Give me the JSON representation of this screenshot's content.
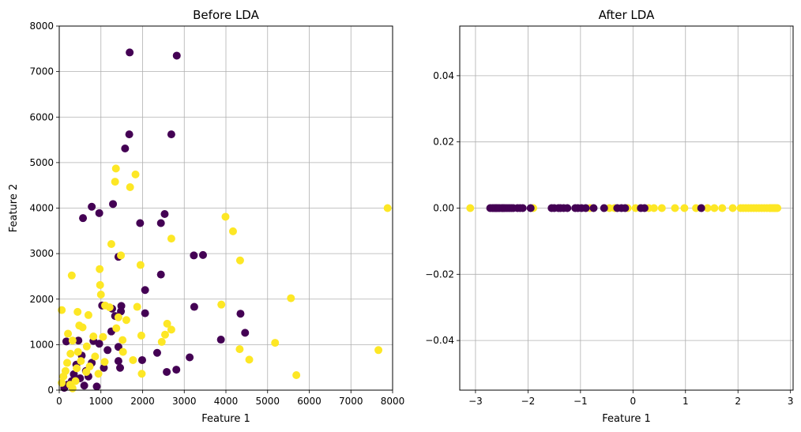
{
  "colors": {
    "class_0": "#440154",
    "class_1": "#fde725",
    "grid": "#b0b0b0"
  },
  "chart_data": [
    {
      "type": "scatter",
      "title": "Before LDA",
      "xlabel": "Feature 1",
      "ylabel": "Feature 2",
      "xlim": [
        0,
        8000
      ],
      "ylim": [
        0,
        8000
      ],
      "xticks": [
        0,
        1000,
        2000,
        3000,
        4000,
        5000,
        6000,
        7000,
        8000
      ],
      "yticks": [
        0,
        1000,
        2000,
        3000,
        4000,
        5000,
        6000,
        7000,
        8000
      ],
      "grid": true,
      "series": [
        {
          "color": "#440154",
          "points": [
            [
              1690,
              7420
            ],
            [
              2820,
              7350
            ],
            [
              1680,
              5620
            ],
            [
              2690,
              5620
            ],
            [
              1580,
              5310
            ],
            [
              780,
              4030
            ],
            [
              570,
              3780
            ],
            [
              960,
              3890
            ],
            [
              1290,
              4090
            ],
            [
              2530,
              3870
            ],
            [
              1940,
              3670
            ],
            [
              2440,
              3670
            ],
            [
              1420,
              2930
            ],
            [
              3230,
              2960
            ],
            [
              3450,
              2970
            ],
            [
              2440,
              2540
            ],
            [
              2060,
              2200
            ],
            [
              1030,
              1860
            ],
            [
              1270,
              1790
            ],
            [
              1490,
              1850
            ],
            [
              3240,
              1830
            ],
            [
              4350,
              1680
            ],
            [
              2060,
              1690
            ],
            [
              1340,
              1630
            ],
            [
              1480,
              1730
            ],
            [
              4460,
              1260
            ],
            [
              1250,
              1290
            ],
            [
              3880,
              1110
            ],
            [
              170,
              1070
            ],
            [
              460,
              1090
            ],
            [
              820,
              1080
            ],
            [
              960,
              1020
            ],
            [
              1420,
              950
            ],
            [
              2350,
              820
            ],
            [
              1420,
              640
            ],
            [
              1990,
              660
            ],
            [
              3130,
              720
            ],
            [
              1070,
              490
            ],
            [
              1460,
              490
            ],
            [
              2580,
              400
            ],
            [
              2810,
              450
            ],
            [
              640,
              420
            ],
            [
              700,
              300
            ],
            [
              500,
              260
            ],
            [
              300,
              200
            ],
            [
              200,
              120
            ],
            [
              600,
              100
            ],
            [
              900,
              80
            ],
            [
              120,
              50
            ],
            [
              350,
              350
            ],
            [
              780,
              600
            ],
            [
              1160,
              880
            ],
            [
              410,
              560
            ],
            [
              540,
              760
            ]
          ]
        },
        {
          "color": "#fde725",
          "points": [
            [
              1360,
              4870
            ],
            [
              1830,
              4740
            ],
            [
              1340,
              4580
            ],
            [
              1700,
              4460
            ],
            [
              3990,
              3810
            ],
            [
              4170,
              3490
            ],
            [
              7880,
              4000
            ],
            [
              2690,
              3330
            ],
            [
              1250,
              3210
            ],
            [
              1480,
              2960
            ],
            [
              1950,
              2750
            ],
            [
              4340,
              2850
            ],
            [
              970,
              2660
            ],
            [
              300,
              2520
            ],
            [
              980,
              2310
            ],
            [
              1000,
              2100
            ],
            [
              1100,
              1860
            ],
            [
              1210,
              1820
            ],
            [
              1870,
              1830
            ],
            [
              3890,
              1880
            ],
            [
              5560,
              2020
            ],
            [
              60,
              1760
            ],
            [
              440,
              1720
            ],
            [
              700,
              1650
            ],
            [
              1420,
              1600
            ],
            [
              1610,
              1540
            ],
            [
              480,
              1420
            ],
            [
              560,
              1380
            ],
            [
              1370,
              1360
            ],
            [
              2590,
              1460
            ],
            [
              2690,
              1330
            ],
            [
              2540,
              1220
            ],
            [
              1970,
              1200
            ],
            [
              1050,
              1170
            ],
            [
              820,
              1180
            ],
            [
              210,
              1240
            ],
            [
              320,
              1090
            ],
            [
              1520,
              1100
            ],
            [
              2460,
              1060
            ],
            [
              5180,
              1040
            ],
            [
              7660,
              880
            ],
            [
              4330,
              900
            ],
            [
              4560,
              670
            ],
            [
              660,
              960
            ],
            [
              450,
              840
            ],
            [
              270,
              800
            ],
            [
              1530,
              840
            ],
            [
              1770,
              660
            ],
            [
              1980,
              360
            ],
            [
              5690,
              330
            ],
            [
              190,
              600
            ],
            [
              420,
              480
            ],
            [
              650,
              400
            ],
            [
              100,
              300
            ],
            [
              260,
              120
            ],
            [
              390,
              200
            ],
            [
              860,
              740
            ],
            [
              1090,
              620
            ],
            [
              150,
              420
            ],
            [
              520,
              640
            ],
            [
              730,
              520
            ],
            [
              60,
              160
            ],
            [
              320,
              40
            ],
            [
              940,
              360
            ]
          ]
        }
      ]
    },
    {
      "type": "scatter",
      "title": "After LDA",
      "xlabel": "Feature 1",
      "ylabel": "",
      "xlim": [
        -3.3,
        3.05
      ],
      "ylim": [
        -0.055,
        0.055
      ],
      "xticks": [
        -3,
        -2,
        -1,
        0,
        1,
        2,
        3
      ],
      "yticks": [
        -0.04,
        -0.02,
        0.0,
        0.02,
        0.04
      ],
      "ytick_labels": [
        "−0.04",
        "−0.02",
        "0.00",
        "0.02",
        "0.04"
      ],
      "xtick_labels": [
        "−3",
        "−2",
        "−1",
        "0",
        "1",
        "2",
        "3"
      ],
      "grid": true,
      "series": [
        {
          "color": "#fde725",
          "points": [
            [
              -3.1,
              0
            ],
            [
              -1.9,
              0
            ],
            [
              -0.82,
              0
            ],
            [
              -0.45,
              0
            ],
            [
              -0.35,
              0
            ],
            [
              -0.1,
              0
            ],
            [
              0.05,
              0
            ],
            [
              0.3,
              0
            ],
            [
              0.4,
              0
            ],
            [
              0.55,
              0
            ],
            [
              0.8,
              0
            ],
            [
              0.98,
              0
            ],
            [
              1.2,
              0
            ],
            [
              1.42,
              0
            ],
            [
              1.55,
              0
            ],
            [
              1.7,
              0
            ],
            [
              1.9,
              0
            ],
            [
              2.05,
              0
            ],
            [
              2.1,
              0
            ],
            [
              2.15,
              0
            ],
            [
              2.2,
              0
            ],
            [
              2.25,
              0
            ],
            [
              2.3,
              0
            ],
            [
              2.35,
              0
            ],
            [
              2.4,
              0
            ],
            [
              2.45,
              0
            ],
            [
              2.5,
              0
            ],
            [
              2.55,
              0
            ],
            [
              2.6,
              0
            ],
            [
              2.62,
              0
            ],
            [
              2.65,
              0
            ],
            [
              2.68,
              0
            ],
            [
              2.7,
              0
            ],
            [
              2.72,
              0
            ],
            [
              2.75,
              0
            ]
          ]
        },
        {
          "color": "#440154",
          "points": [
            [
              -2.72,
              0
            ],
            [
              -2.68,
              0
            ],
            [
              -2.65,
              0
            ],
            [
              -2.62,
              0
            ],
            [
              -2.6,
              0
            ],
            [
              -2.57,
              0
            ],
            [
              -2.54,
              0
            ],
            [
              -2.5,
              0
            ],
            [
              -2.47,
              0
            ],
            [
              -2.44,
              0
            ],
            [
              -2.4,
              0
            ],
            [
              -2.36,
              0
            ],
            [
              -2.32,
              0
            ],
            [
              -2.28,
              0
            ],
            [
              -2.2,
              0
            ],
            [
              -2.15,
              0
            ],
            [
              -2.1,
              0
            ],
            [
              -1.95,
              0
            ],
            [
              -1.55,
              0
            ],
            [
              -1.5,
              0
            ],
            [
              -1.42,
              0
            ],
            [
              -1.38,
              0
            ],
            [
              -1.32,
              0
            ],
            [
              -1.25,
              0
            ],
            [
              -1.1,
              0
            ],
            [
              -1.05,
              0
            ],
            [
              -0.98,
              0
            ],
            [
              -0.9,
              0
            ],
            [
              -0.75,
              0
            ],
            [
              -0.55,
              0
            ],
            [
              -0.3,
              0
            ],
            [
              -0.22,
              0
            ],
            [
              -0.15,
              0
            ],
            [
              0.15,
              0
            ],
            [
              0.22,
              0
            ],
            [
              1.3,
              0
            ]
          ]
        }
      ]
    }
  ]
}
